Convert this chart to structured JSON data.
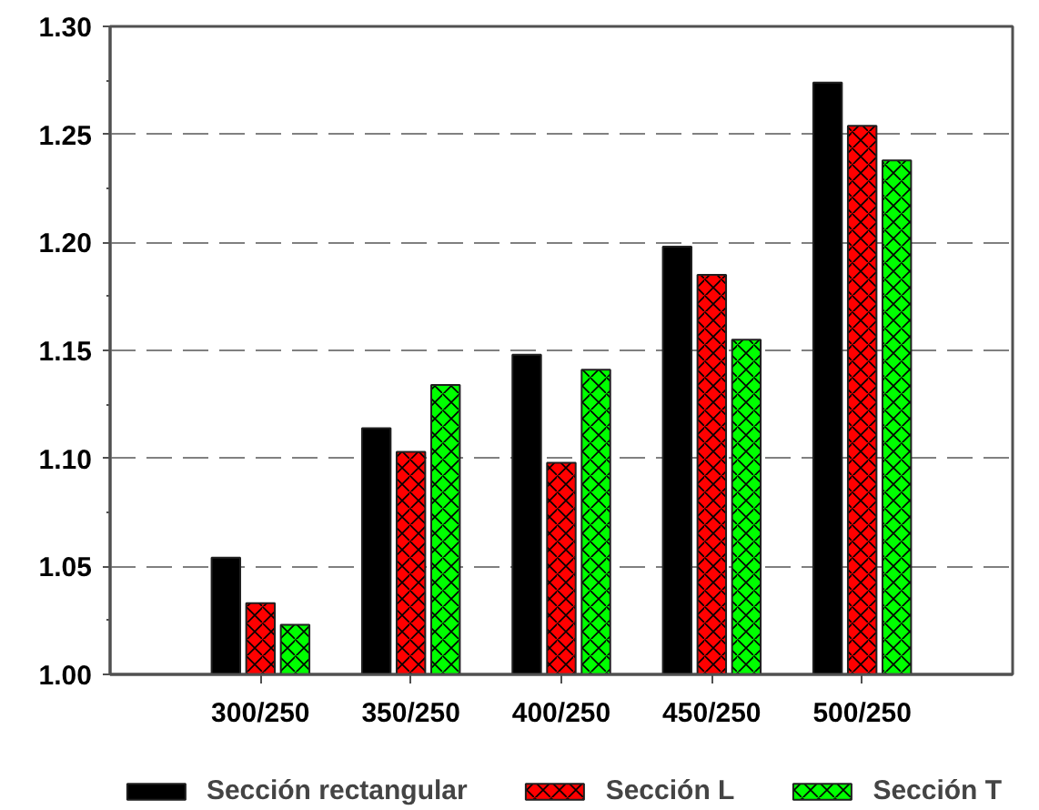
{
  "chart_data": {
    "type": "bar",
    "categories": [
      "300/250",
      "350/250",
      "400/250",
      "450/250",
      "500/250"
    ],
    "series": [
      {
        "name": "Sección rectangular",
        "color": "#000000",
        "values": [
          1.054,
          1.114,
          1.148,
          1.198,
          1.274
        ]
      },
      {
        "name": "Sección L",
        "color": "#ff0000",
        "values": [
          1.033,
          1.103,
          1.098,
          1.185,
          1.254
        ]
      },
      {
        "name": "Sección T",
        "color": "#00ff00",
        "values": [
          1.023,
          1.134,
          1.141,
          1.155,
          1.238
        ]
      }
    ],
    "ylim": [
      1.0,
      1.3
    ],
    "yticks": [
      {
        "value": 1.0,
        "label": "1.00"
      },
      {
        "value": 1.05,
        "label": "1.05"
      },
      {
        "value": 1.1,
        "label": "1.10"
      },
      {
        "value": 1.15,
        "label": "1.15"
      },
      {
        "value": 1.2,
        "label": "1.20"
      },
      {
        "value": 1.25,
        "label": "1.25"
      },
      {
        "value": 1.3,
        "label": "1.30"
      }
    ],
    "grid": "y",
    "legend": "bottom"
  }
}
